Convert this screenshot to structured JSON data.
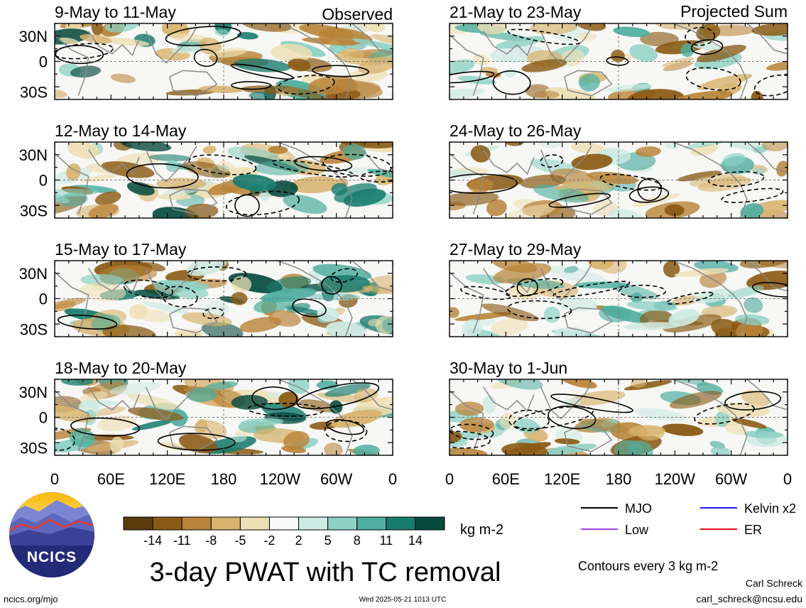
{
  "panels": {
    "observed_label": "Observed",
    "projected_label": "Projected Sum",
    "left": [
      {
        "dates": "9-May to 11-May"
      },
      {
        "dates": "12-May to 14-May"
      },
      {
        "dates": "15-May to 17-May"
      },
      {
        "dates": "18-May to 20-May"
      }
    ],
    "right": [
      {
        "dates": "21-May to 23-May"
      },
      {
        "dates": "24-May to 26-May"
      },
      {
        "dates": "27-May to 29-May"
      },
      {
        "dates": "30-May to 1-Jun"
      }
    ]
  },
  "axes": {
    "lat_labels": [
      "30N",
      "0",
      "30S"
    ],
    "lon_labels": [
      "0",
      "60E",
      "120E",
      "180",
      "120W",
      "60W",
      "0"
    ]
  },
  "colorbar": {
    "colors": [
      "#5c3b0b",
      "#8a5a14",
      "#b98439",
      "#d8b36e",
      "#eedfb4",
      "#f8f8f8",
      "#cdeae3",
      "#8dd1c4",
      "#4fae9f",
      "#177c6e",
      "#074b3f"
    ],
    "tick_labels": [
      "-14",
      "-11",
      "-8",
      "-5",
      "-2",
      "2",
      "5",
      "8",
      "11",
      "14"
    ],
    "units": "kg m-2"
  },
  "legend": [
    {
      "label": "MJO",
      "color": "#000000"
    },
    {
      "label": "Kelvin x2",
      "color": "#1a1aff"
    },
    {
      "label": "Low",
      "color": "#a040e0"
    },
    {
      "label": "ER",
      "color": "#e01010"
    }
  ],
  "contours_note": "Contours every 3 kg m-2",
  "title": "3-day PWAT with TC removal",
  "logo_text": "NCICS",
  "footer": {
    "url": "ncics.org/mjo",
    "timestamp": "Wed 2025-05-21 1013 UTC",
    "author": "Carl Schreck",
    "email": "carl_schreck@ncsu.edu"
  }
}
